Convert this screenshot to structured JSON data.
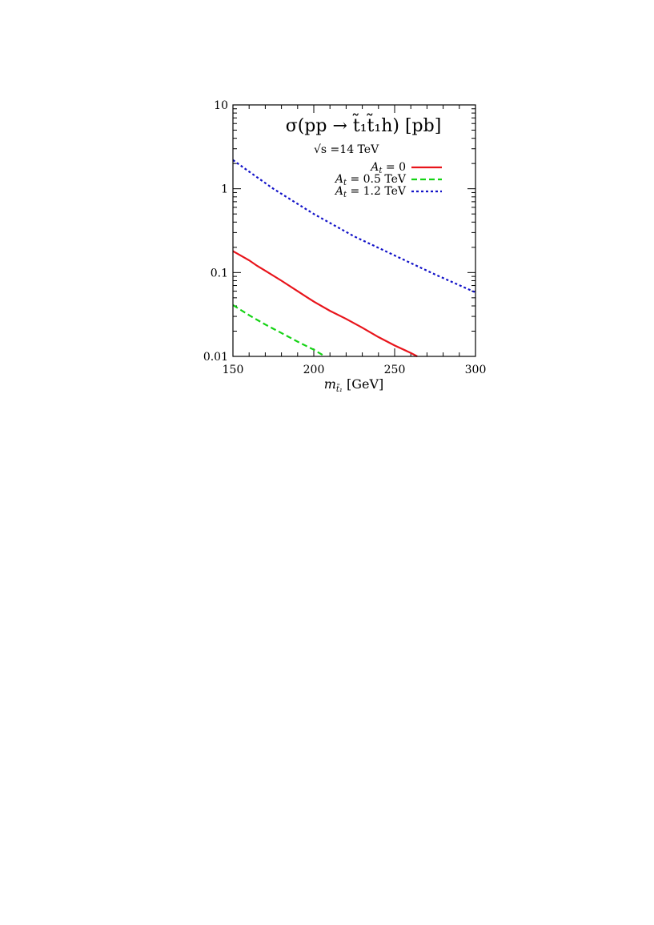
{
  "chart_data": {
    "type": "line",
    "title": "σ(pp → t̃₁t̃₁h) [pb]",
    "annotation": "√s =14 TeV",
    "xlabel": "m_t̃₁ [GeV]",
    "x_label_main": "m",
    "x_label_sub": "t̃₁",
    "x_label_unit": " [GeV]",
    "ylabel": "",
    "xlim": [
      150,
      300
    ],
    "ylim": [
      0.01,
      10
    ],
    "yscale": "log",
    "grid": false,
    "legend_position": "top-right",
    "x_ticks": [
      150,
      200,
      250,
      300
    ],
    "x_tick_labels": [
      "150",
      "200",
      "250",
      "300"
    ],
    "y_ticks": [
      0.01,
      0.1,
      1,
      10
    ],
    "y_tick_labels": [
      "0.01",
      "0.1",
      "1",
      "10"
    ],
    "series": [
      {
        "name": "A_t = 0",
        "legend_label": "A",
        "legend_sub": "t",
        "legend_rest": " = 0",
        "color": "#e8141b",
        "dash": "solid",
        "x": [
          150,
          160,
          165,
          170,
          180,
          190,
          200,
          210,
          220,
          230,
          240,
          250,
          260,
          264
        ],
        "y": [
          0.18,
          0.14,
          0.12,
          0.105,
          0.08,
          0.06,
          0.045,
          0.035,
          0.028,
          0.022,
          0.017,
          0.0135,
          0.011,
          0.01
        ]
      },
      {
        "name": "A_t = 0.5 TeV",
        "legend_label": "A",
        "legend_sub": "t",
        "legend_rest": " = 0.5 TeV",
        "color": "#14d314",
        "dash": "dashed",
        "x": [
          150,
          160,
          170,
          180,
          190,
          200,
          207
        ],
        "y": [
          0.041,
          0.031,
          0.024,
          0.019,
          0.015,
          0.012,
          0.01
        ]
      },
      {
        "name": "A_t = 1.2 TeV",
        "legend_label": "A",
        "legend_sub": "t",
        "legend_rest": " = 1.2 TeV",
        "color": "#1212c8",
        "dash": "dotted",
        "x": [
          150,
          160,
          175,
          200,
          225,
          250,
          275,
          300
        ],
        "y": [
          2.2,
          1.6,
          1.0,
          0.5,
          0.27,
          0.16,
          0.095,
          0.058
        ]
      }
    ]
  }
}
